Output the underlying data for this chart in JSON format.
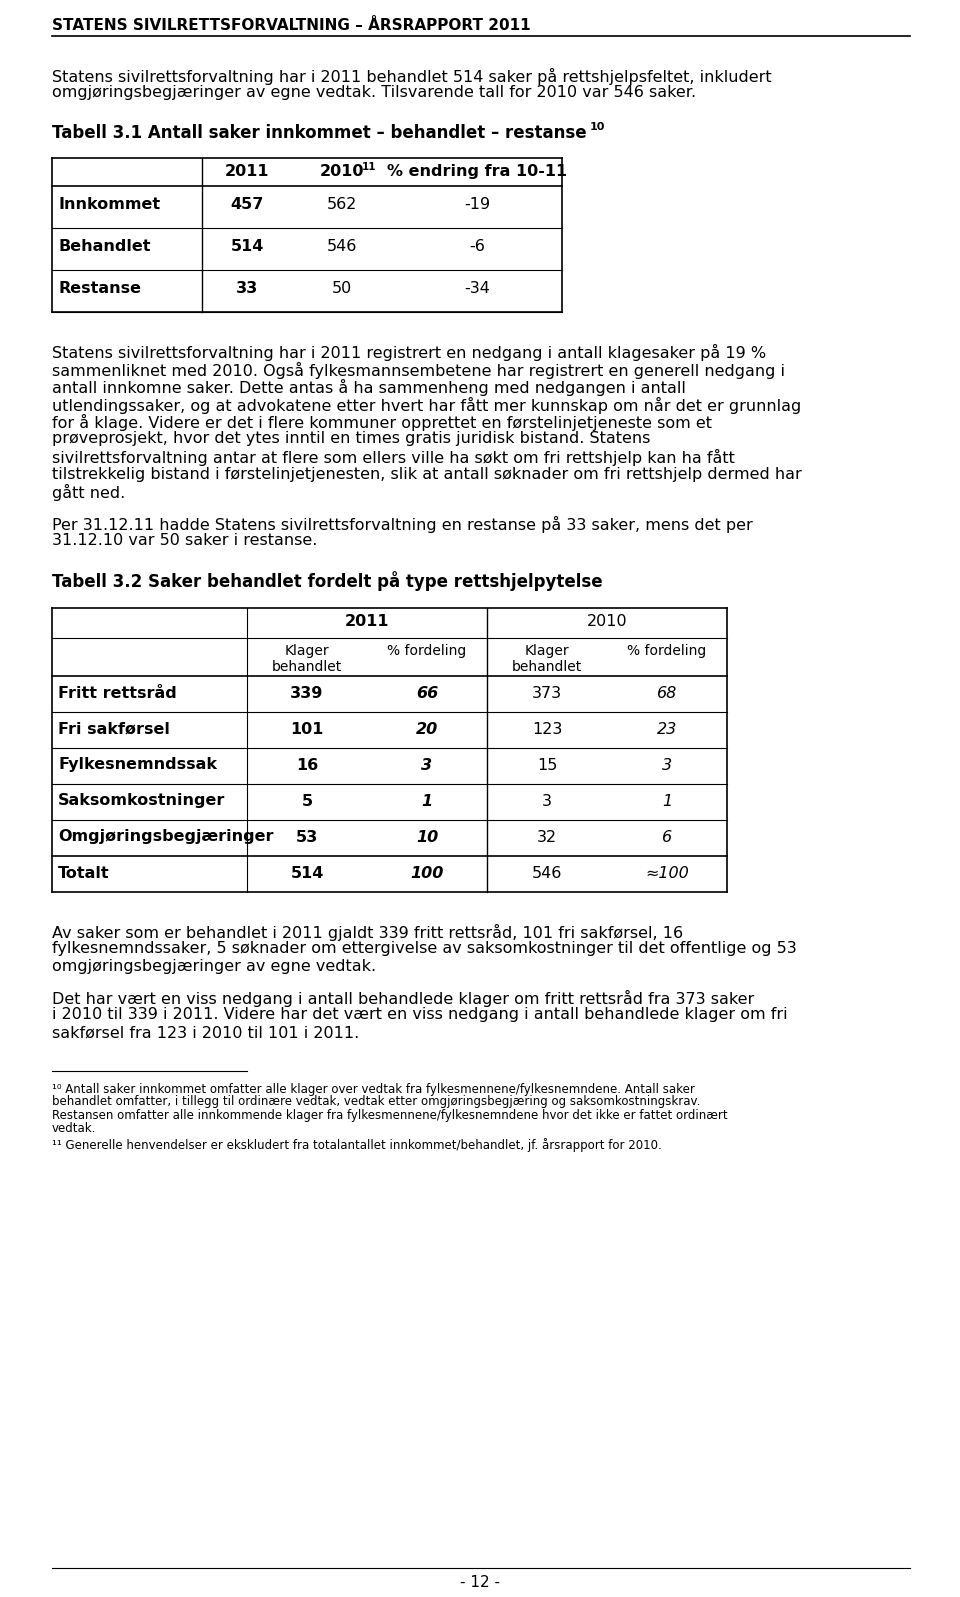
{
  "header": "STATENS SIVILRETTSFORVALTNING – ÅRSRAPPORT 2011",
  "para1_lines": [
    "Statens sivilrettsforvaltning har i 2011 behandlet 514 saker på rettshjelpsfeltet, inkludert",
    "omgjøringsbegjæringer av egne vedtak. Tilsvarende tall for 2010 var 546 saker."
  ],
  "table1_title": "Tabell 3.1 Antall saker innkommet – behandlet – restanse",
  "table1_title_sup": "10",
  "table1_headers": [
    "",
    "2011",
    "2010",
    "% endring fra 10-11"
  ],
  "table1_sup11": "11",
  "table1_rows": [
    [
      "Innkommet",
      "457",
      "562",
      "-19"
    ],
    [
      "Behandlet",
      "514",
      "546",
      "-6"
    ],
    [
      "Restanse",
      "33",
      "50",
      "-34"
    ]
  ],
  "para2_lines": [
    "Statens sivilrettsforvaltning har i 2011 registrert en nedgang i antall klagesaker på 19 %",
    "sammenliknet med 2010. Også fylkesmannsembetene har registrert en generell nedgang i",
    "antall innkomne saker. Dette antas å ha sammenheng med nedgangen i antall",
    "utlendingssaker, og at advokatene etter hvert har fått mer kunnskap om når det er grunnlag",
    "for å klage. Videre er det i flere kommuner opprettet en førstelinjetjeneste som et",
    "prøveprosjekt, hvor det ytes inntil en times gratis juridisk bistand. Statens",
    "sivilrettsforvaltning antar at flere som ellers ville ha søkt om fri rettshjelp kan ha fått",
    "tilstrekkelig bistand i førstelinjetjenesten, slik at antall søknader om fri rettshjelp dermed har",
    "gått ned."
  ],
  "para3_lines": [
    "Per 31.12.11 hadde Statens sivilrettsforvaltning en restanse på 33 saker, mens det per",
    "31.12.10 var 50 saker i restanse."
  ],
  "table2_title": "Tabell 3.2 Saker behandlet fordelt på type rettshjelpytelse",
  "table2_rows": [
    [
      "Fritt rettsråd",
      "339",
      "66",
      "373",
      "68"
    ],
    [
      "Fri sakførsel",
      "101",
      "20",
      "123",
      "23"
    ],
    [
      "Fylkesnemndssak",
      "16",
      "3",
      "15",
      "3"
    ],
    [
      "Saksomkostninger",
      "5",
      "1",
      "3",
      "1"
    ],
    [
      "Omgjøringsbegjæringer",
      "53",
      "10",
      "32",
      "6"
    ]
  ],
  "table2_total": [
    "Totalt",
    "514",
    "100",
    "546",
    "≈100"
  ],
  "para4_lines": [
    "Av saker som er behandlet i 2011 gjaldt 339 fritt rettsråd, 101 fri sakførsel, 16",
    "fylkesnemndssaker, 5 søknader om ettergivelse av saksomkostninger til det offentlige og 53",
    "omgjøringsbegjæringer av egne vedtak."
  ],
  "para5_lines": [
    "Det har vært en viss nedgang i antall behandlede klager om fritt rettsråd fra 373 saker",
    "i 2010 til 339 i 2011. Videre har det vært en viss nedgang i antall behandlede klager om fri",
    "sakførsel fra 123 i 2010 til 101 i 2011."
  ],
  "footnote10_lines": [
    "¹⁰ Antall saker innkommet omfatter alle klager over vedtak fra fylkesmennene/fylkesnemndene. Antall saker",
    "behandlet omfatter, i tillegg til ordinære vedtak, vedtak etter omgjøringsbegjæring og saksomkostningskrav.",
    "Restansen omfatter alle innkommende klager fra fylkesmennene/fylkesnemndene hvor det ikke er fattet ordinært",
    "vedtak."
  ],
  "footnote11_line": "¹¹ Generelle henvendelser er ekskludert fra totalantallet innkommet/behandlet, jf. årsrapport for 2010.",
  "page_number": "- 12 -",
  "bg_color": "#ffffff"
}
